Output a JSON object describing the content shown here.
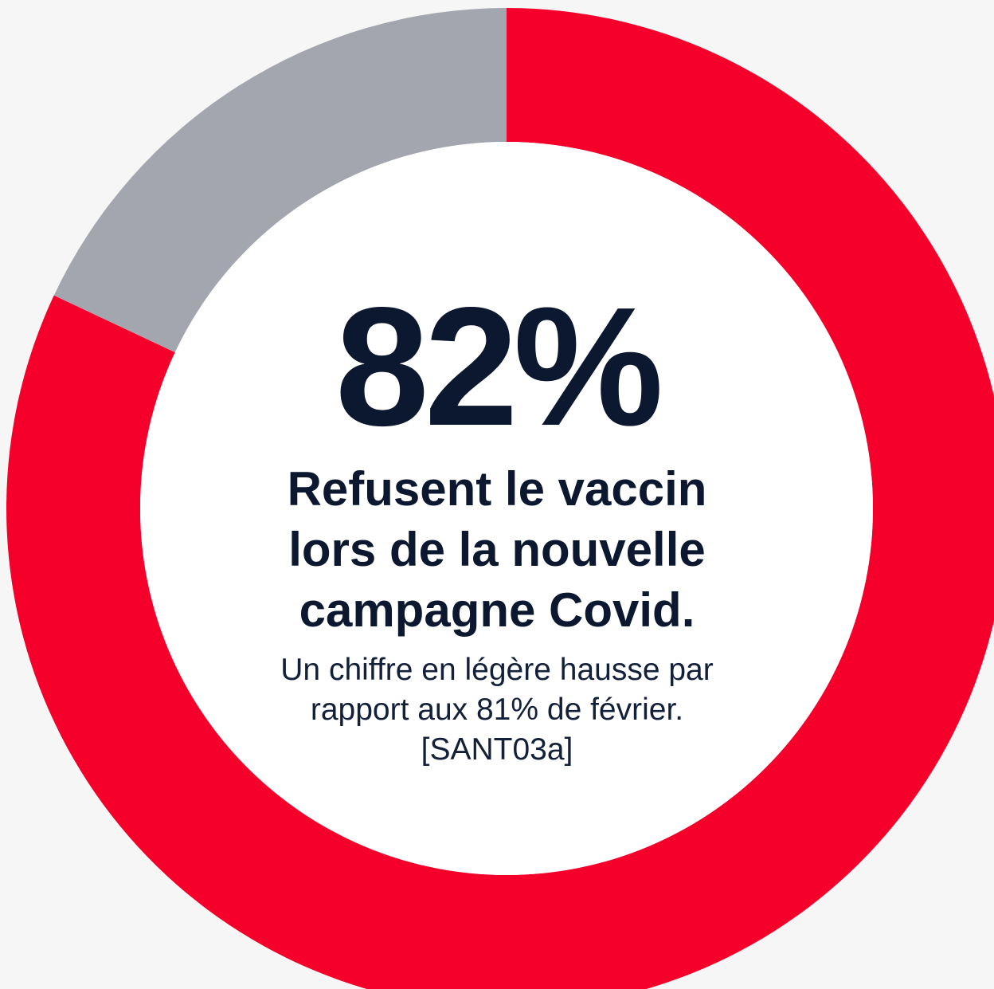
{
  "chart_data": {
    "type": "pie",
    "slices": [
      {
        "label": "Refusent le vaccin",
        "value": 82,
        "color": "#f5002b"
      },
      {
        "label": "",
        "value": 18,
        "color": "#a3a6ae"
      }
    ],
    "center_value": "82%",
    "headline": "Refusent le vaccin lors de la nouvelle campagne Covid.",
    "note": "Un chiffre en légère hausse par rapport aux 81% de février. [SANT03a]"
  }
}
